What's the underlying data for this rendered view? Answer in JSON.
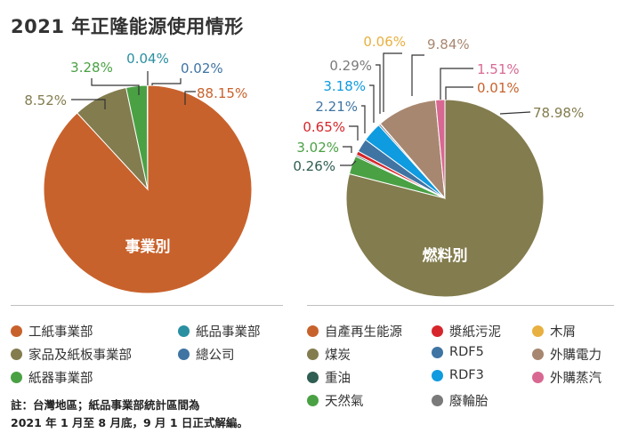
{
  "title": "2021 年正隆能源使用情形",
  "chart_data": [
    {
      "type": "pie",
      "center_label": "事業別",
      "labels": [
        "工紙事業部",
        "家品及紙板事業部",
        "紙器事業部",
        "紙品事業部",
        "總公司"
      ],
      "values": [
        88.15,
        8.52,
        3.28,
        0.04,
        0.02
      ],
      "value_labels": [
        "88.15%",
        "8.52%",
        "3.28%",
        "0.04%",
        "0.02%"
      ],
      "colors": [
        "#c8622c",
        "#837c4e",
        "#4aa144",
        "#2a8fa1",
        "#3f74a3"
      ]
    },
    {
      "type": "pie",
      "center_label": "燃料別",
      "labels": [
        "煤炭",
        "天然氣",
        "重油",
        "漿紙污泥",
        "RDF5",
        "RDF3",
        "廢輪胎",
        "木屑",
        "外購電力",
        "外購蒸汽",
        "自產再生能源"
      ],
      "values": [
        78.98,
        3.02,
        0.26,
        0.65,
        2.21,
        3.18,
        0.29,
        0.06,
        9.84,
        1.51,
        0.01
      ],
      "value_labels": [
        "78.98%",
        "3.02%",
        "0.26%",
        "0.65%",
        "2.21%",
        "3.18%",
        "0.29%",
        "0.06%",
        "9.84%",
        "1.51%",
        "0.01%"
      ],
      "colors": [
        "#837c4e",
        "#4aa144",
        "#2f5e52",
        "#d6262b",
        "#3f74a3",
        "#0e9be0",
        "#7a7a7a",
        "#e8b040",
        "#a88770",
        "#d86892",
        "#c8622c"
      ]
    }
  ],
  "legend_left": [
    {
      "label": "工紙事業部",
      "color": "#c8622c"
    },
    {
      "label": "紙品事業部",
      "color": "#2a8fa1"
    },
    {
      "label": "家品及紙板事業部",
      "color": "#837c4e"
    },
    {
      "label": "總公司",
      "color": "#3f74a3"
    },
    {
      "label": "紙器事業部",
      "color": "#4aa144"
    }
  ],
  "legend_right": [
    {
      "label": "自產再生能源",
      "color": "#c8622c"
    },
    {
      "label": "漿紙污泥",
      "color": "#d6262b"
    },
    {
      "label": "木屑",
      "color": "#e8b040"
    },
    {
      "label": "煤炭",
      "color": "#837c4e"
    },
    {
      "label": "RDF5",
      "color": "#3f74a3"
    },
    {
      "label": "外購電力",
      "color": "#a88770"
    },
    {
      "label": "重油",
      "color": "#2f5e52"
    },
    {
      "label": "RDF3",
      "color": "#0e9be0"
    },
    {
      "label": "外購蒸汽",
      "color": "#d86892"
    },
    {
      "label": "天然氣",
      "color": "#4aa144"
    },
    {
      "label": "廢輪胎",
      "color": "#7a7a7a"
    }
  ],
  "note": {
    "line1": "註：台灣地區；紙品事業部統計區間為",
    "line2": "2021 年 1 月至 8 月底，9 月 1 日正式解編。"
  }
}
